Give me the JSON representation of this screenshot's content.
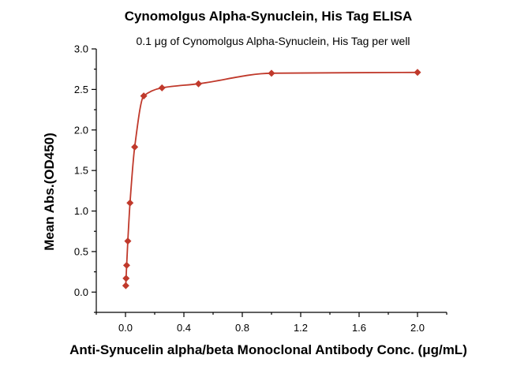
{
  "chart_data": {
    "type": "scatter",
    "title": "Cynomolgus Alpha-Synuclein, His Tag ELISA",
    "subtitle": "0.1 μg of Cynomolgus Alpha-Synuclein, His Tag per well",
    "xlabel": "Anti-Synucelin alpha/beta Monoclonal Antibody Conc. (μg/mL)",
    "ylabel": "Mean Abs.(OD450)",
    "xlim": [
      -0.2,
      2.2
    ],
    "ylim": [
      -0.25,
      3.0
    ],
    "x_ticks": [
      0.0,
      0.4,
      0.8,
      1.2,
      1.6,
      2.0
    ],
    "x_tick_labels": [
      "0.0",
      "0.4",
      "0.8",
      "1.2",
      "1.6",
      "2.0"
    ],
    "y_ticks": [
      0.0,
      0.5,
      1.0,
      1.5,
      2.0,
      2.5,
      3.0
    ],
    "y_tick_labels": [
      "0.0",
      "0.5",
      "1.0",
      "1.5",
      "2.0",
      "2.5",
      "3.0"
    ],
    "grid": false,
    "series": [
      {
        "color": "#c0392b",
        "marker": "diamond",
        "fit_line": true,
        "x": [
          0.002,
          0.004,
          0.008,
          0.016,
          0.031,
          0.063,
          0.125,
          0.25,
          0.5,
          1.0,
          2.0
        ],
        "y": [
          0.08,
          0.17,
          0.33,
          0.63,
          1.1,
          1.79,
          2.42,
          2.52,
          2.57,
          2.7,
          2.71
        ]
      }
    ]
  }
}
